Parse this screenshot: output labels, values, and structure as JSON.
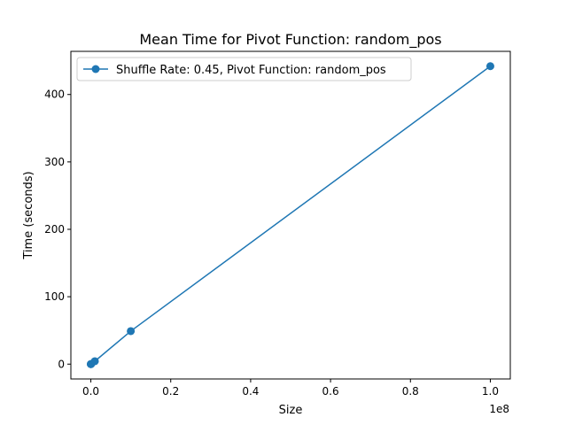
{
  "chart_data": {
    "type": "line",
    "title": "Mean Time for Pivot Function: random_pos",
    "xlabel": "Size",
    "ylabel": "Time (seconds)",
    "x_offset_label": "1e8",
    "xlim": [
      -5000000,
      105000000
    ],
    "ylim": [
      -22,
      464
    ],
    "x_ticks": [
      0,
      20000000,
      40000000,
      60000000,
      80000000,
      100000000
    ],
    "x_tick_labels": [
      "0.0",
      "0.2",
      "0.4",
      "0.6",
      "0.8",
      "1.0"
    ],
    "y_ticks": [
      0,
      100,
      200,
      300,
      400
    ],
    "y_tick_labels": [
      "0",
      "100",
      "200",
      "300",
      "400"
    ],
    "grid": false,
    "legend_position": "upper-left",
    "series": [
      {
        "name": "Shuffle Rate: 0.45, Pivot Function: random_pos",
        "color": "#1f77b4",
        "x": [
          100,
          1000,
          10000,
          100000,
          1000000,
          10000000,
          100000000
        ],
        "y": [
          0.0,
          0.0,
          0.03,
          0.4,
          4.3,
          49,
          442
        ]
      }
    ]
  }
}
